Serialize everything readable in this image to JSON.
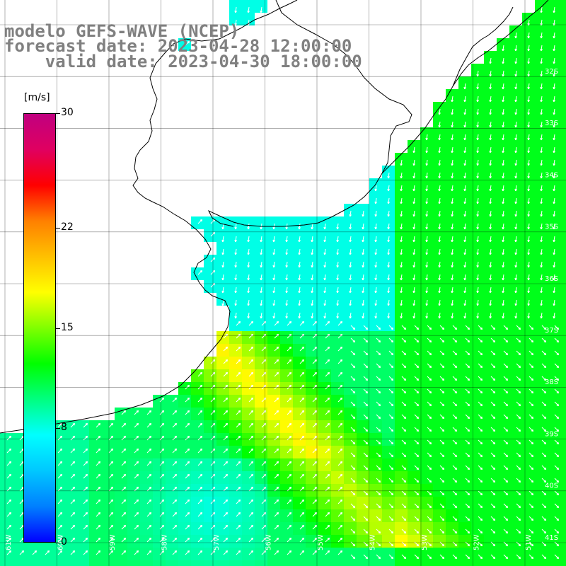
{
  "header": {
    "model": "modelo GEFS-WAVE (NCEP)",
    "forecast": "forecast date: 2023-04-28 12:00:00",
    "valid": "valid date: 2023-04-30 18:00:00"
  },
  "colorbar": {
    "unit": "[m/s]",
    "min": 0,
    "max": 30,
    "ticks": [
      "30",
      "22",
      "15",
      "8",
      "0"
    ],
    "colors": [
      "#0000ff",
      "#0080ff",
      "#00c8ff",
      "#00ffff",
      "#00ff80",
      "#00ff00",
      "#80ff00",
      "#ffff00",
      "#ffc000",
      "#ff8000",
      "#ff0000",
      "#e00060",
      "#c00080"
    ]
  },
  "map": {
    "lat_labels": [
      "32S",
      "33S",
      "34S",
      "35S",
      "36S",
      "37S",
      "38S",
      "39S",
      "40S",
      "41S"
    ],
    "lon_labels": [
      "61W",
      "60W",
      "59W",
      "58W",
      "57W",
      "56W",
      "55W",
      "54W",
      "53W",
      "52W",
      "51W"
    ],
    "colors": {
      "land": "#ffffff",
      "coast": "#000000",
      "grid": "#000000",
      "arrow": "#ffffff"
    }
  }
}
